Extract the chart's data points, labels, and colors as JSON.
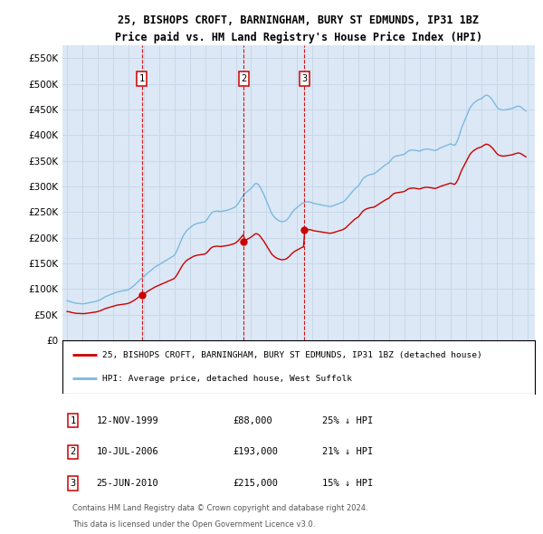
{
  "title": "25, BISHOPS CROFT, BARNINGHAM, BURY ST EDMUNDS, IP31 1BZ",
  "subtitle": "Price paid vs. HM Land Registry's House Price Index (HPI)",
  "ylim": [
    0,
    575000
  ],
  "yticks": [
    0,
    50000,
    100000,
    150000,
    200000,
    250000,
    300000,
    350000,
    400000,
    450000,
    500000,
    550000
  ],
  "xlim_start": 1994.7,
  "xlim_end": 2025.5,
  "hpi_color": "#7cb9e0",
  "sale_color": "#cc0000",
  "grid_color": "#c8d8e8",
  "bg_color": "#dce8f5",
  "legend_line1": "25, BISHOPS CROFT, BARNINGHAM, BURY ST EDMUNDS, IP31 1BZ (detached house)",
  "legend_line2": "HPI: Average price, detached house, West Suffolk",
  "sale_transactions": [
    {
      "num": 1,
      "date": "12-NOV-1999",
      "price": 88000,
      "pct": "25%",
      "year": 1999.87
    },
    {
      "num": 2,
      "date": "10-JUL-2006",
      "price": 193000,
      "pct": "21%",
      "year": 2006.53
    },
    {
      "num": 3,
      "date": "25-JUN-2010",
      "price": 215000,
      "pct": "15%",
      "year": 2010.48
    }
  ],
  "footer_line1": "Contains HM Land Registry data © Crown copyright and database right 2024.",
  "footer_line2": "This data is licensed under the Open Government Licence v3.0.",
  "hpi_data": [
    [
      1995.0,
      77000
    ],
    [
      1995.083,
      76500
    ],
    [
      1995.167,
      76000
    ],
    [
      1995.25,
      75000
    ],
    [
      1995.333,
      74000
    ],
    [
      1995.417,
      73500
    ],
    [
      1995.5,
      72800
    ],
    [
      1995.583,
      72200
    ],
    [
      1995.667,
      72000
    ],
    [
      1995.75,
      71800
    ],
    [
      1995.833,
      71500
    ],
    [
      1995.917,
      71200
    ],
    [
      1996.0,
      71000
    ],
    [
      1996.083,
      71200
    ],
    [
      1996.167,
      71500
    ],
    [
      1996.25,
      72000
    ],
    [
      1996.333,
      72500
    ],
    [
      1996.417,
      73000
    ],
    [
      1996.5,
      73500
    ],
    [
      1996.583,
      74000
    ],
    [
      1996.667,
      74500
    ],
    [
      1996.75,
      75000
    ],
    [
      1996.833,
      75500
    ],
    [
      1996.917,
      76000
    ],
    [
      1997.0,
      77000
    ],
    [
      1997.083,
      78000
    ],
    [
      1997.167,
      79000
    ],
    [
      1997.25,
      80500
    ],
    [
      1997.333,
      82000
    ],
    [
      1997.417,
      83500
    ],
    [
      1997.5,
      85000
    ],
    [
      1997.583,
      86000
    ],
    [
      1997.667,
      87000
    ],
    [
      1997.75,
      88000
    ],
    [
      1997.833,
      89000
    ],
    [
      1997.917,
      90000
    ],
    [
      1998.0,
      91000
    ],
    [
      1998.083,
      92000
    ],
    [
      1998.167,
      93000
    ],
    [
      1998.25,
      94000
    ],
    [
      1998.333,
      94500
    ],
    [
      1998.417,
      95000
    ],
    [
      1998.5,
      95500
    ],
    [
      1998.583,
      96000
    ],
    [
      1998.667,
      96500
    ],
    [
      1998.75,
      97000
    ],
    [
      1998.833,
      97500
    ],
    [
      1998.917,
      98000
    ],
    [
      1999.0,
      99000
    ],
    [
      1999.083,
      100500
    ],
    [
      1999.167,
      102000
    ],
    [
      1999.25,
      104000
    ],
    [
      1999.333,
      106000
    ],
    [
      1999.417,
      108000
    ],
    [
      1999.5,
      110500
    ],
    [
      1999.583,
      113000
    ],
    [
      1999.667,
      115500
    ],
    [
      1999.75,
      118000
    ],
    [
      1999.833,
      120000
    ],
    [
      1999.917,
      122000
    ],
    [
      2000.0,
      124000
    ],
    [
      2000.083,
      126000
    ],
    [
      2000.167,
      128500
    ],
    [
      2000.25,
      131000
    ],
    [
      2000.333,
      133000
    ],
    [
      2000.417,
      135000
    ],
    [
      2000.5,
      137000
    ],
    [
      2000.583,
      139000
    ],
    [
      2000.667,
      141000
    ],
    [
      2000.75,
      143000
    ],
    [
      2000.833,
      144500
    ],
    [
      2000.917,
      146000
    ],
    [
      2001.0,
      147500
    ],
    [
      2001.083,
      149000
    ],
    [
      2001.167,
      150500
    ],
    [
      2001.25,
      152000
    ],
    [
      2001.333,
      153500
    ],
    [
      2001.417,
      155000
    ],
    [
      2001.5,
      156500
    ],
    [
      2001.583,
      158000
    ],
    [
      2001.667,
      159500
    ],
    [
      2001.75,
      161000
    ],
    [
      2001.833,
      162500
    ],
    [
      2001.917,
      164000
    ],
    [
      2002.0,
      166000
    ],
    [
      2002.083,
      170000
    ],
    [
      2002.167,
      175000
    ],
    [
      2002.25,
      181000
    ],
    [
      2002.333,
      187000
    ],
    [
      2002.417,
      193000
    ],
    [
      2002.5,
      199000
    ],
    [
      2002.583,
      204000
    ],
    [
      2002.667,
      208000
    ],
    [
      2002.75,
      212000
    ],
    [
      2002.833,
      215000
    ],
    [
      2002.917,
      217000
    ],
    [
      2003.0,
      219000
    ],
    [
      2003.083,
      221000
    ],
    [
      2003.167,
      223000
    ],
    [
      2003.25,
      225000
    ],
    [
      2003.333,
      226000
    ],
    [
      2003.417,
      227000
    ],
    [
      2003.5,
      228000
    ],
    [
      2003.583,
      228500
    ],
    [
      2003.667,
      229000
    ],
    [
      2003.75,
      229500
    ],
    [
      2003.833,
      230000
    ],
    [
      2003.917,
      230500
    ],
    [
      2004.0,
      231000
    ],
    [
      2004.083,
      234000
    ],
    [
      2004.167,
      237000
    ],
    [
      2004.25,
      241000
    ],
    [
      2004.333,
      245000
    ],
    [
      2004.417,
      248000
    ],
    [
      2004.5,
      250000
    ],
    [
      2004.583,
      251000
    ],
    [
      2004.667,
      251500
    ],
    [
      2004.75,
      252000
    ],
    [
      2004.833,
      252000
    ],
    [
      2004.917,
      251500
    ],
    [
      2005.0,
      251000
    ],
    [
      2005.083,
      251500
    ],
    [
      2005.167,
      252000
    ],
    [
      2005.25,
      252500
    ],
    [
      2005.333,
      253000
    ],
    [
      2005.417,
      253500
    ],
    [
      2005.5,
      254000
    ],
    [
      2005.583,
      255000
    ],
    [
      2005.667,
      256000
    ],
    [
      2005.75,
      257000
    ],
    [
      2005.833,
      258000
    ],
    [
      2005.917,
      259000
    ],
    [
      2006.0,
      261000
    ],
    [
      2006.083,
      264000
    ],
    [
      2006.167,
      267000
    ],
    [
      2006.25,
      271000
    ],
    [
      2006.333,
      275000
    ],
    [
      2006.417,
      279000
    ],
    [
      2006.5,
      283000
    ],
    [
      2006.583,
      286000
    ],
    [
      2006.667,
      288000
    ],
    [
      2006.75,
      290000
    ],
    [
      2006.833,
      292000
    ],
    [
      2006.917,
      294000
    ],
    [
      2007.0,
      296000
    ],
    [
      2007.083,
      299000
    ],
    [
      2007.167,
      302000
    ],
    [
      2007.25,
      305000
    ],
    [
      2007.333,
      306000
    ],
    [
      2007.417,
      305000
    ],
    [
      2007.5,
      303000
    ],
    [
      2007.583,
      299000
    ],
    [
      2007.667,
      294000
    ],
    [
      2007.75,
      289000
    ],
    [
      2007.833,
      284000
    ],
    [
      2007.917,
      278000
    ],
    [
      2008.0,
      272000
    ],
    [
      2008.083,
      266000
    ],
    [
      2008.167,
      260000
    ],
    [
      2008.25,
      254000
    ],
    [
      2008.333,
      248000
    ],
    [
      2008.417,
      244000
    ],
    [
      2008.5,
      241000
    ],
    [
      2008.583,
      238000
    ],
    [
      2008.667,
      236000
    ],
    [
      2008.75,
      234000
    ],
    [
      2008.833,
      233000
    ],
    [
      2008.917,
      232000
    ],
    [
      2009.0,
      231000
    ],
    [
      2009.083,
      231500
    ],
    [
      2009.167,
      232000
    ],
    [
      2009.25,
      233000
    ],
    [
      2009.333,
      235000
    ],
    [
      2009.417,
      238000
    ],
    [
      2009.5,
      241000
    ],
    [
      2009.583,
      245000
    ],
    [
      2009.667,
      249000
    ],
    [
      2009.75,
      252000
    ],
    [
      2009.833,
      255000
    ],
    [
      2009.917,
      257000
    ],
    [
      2010.0,
      259000
    ],
    [
      2010.083,
      261000
    ],
    [
      2010.167,
      263000
    ],
    [
      2010.25,
      265000
    ],
    [
      2010.333,
      267000
    ],
    [
      2010.417,
      268000
    ],
    [
      2010.5,
      269000
    ],
    [
      2010.583,
      269500
    ],
    [
      2010.667,
      270000
    ],
    [
      2010.75,
      270000
    ],
    [
      2010.833,
      269500
    ],
    [
      2010.917,
      269000
    ],
    [
      2011.0,
      268000
    ],
    [
      2011.083,
      267000
    ],
    [
      2011.167,
      266500
    ],
    [
      2011.25,
      266000
    ],
    [
      2011.333,
      265500
    ],
    [
      2011.417,
      265000
    ],
    [
      2011.5,
      264500
    ],
    [
      2011.583,
      264000
    ],
    [
      2011.667,
      263500
    ],
    [
      2011.75,
      263000
    ],
    [
      2011.833,
      262500
    ],
    [
      2011.917,
      262000
    ],
    [
      2012.0,
      261500
    ],
    [
      2012.083,
      261000
    ],
    [
      2012.167,
      261000
    ],
    [
      2012.25,
      261500
    ],
    [
      2012.333,
      262000
    ],
    [
      2012.417,
      263000
    ],
    [
      2012.5,
      264000
    ],
    [
      2012.583,
      265000
    ],
    [
      2012.667,
      266000
    ],
    [
      2012.75,
      267000
    ],
    [
      2012.833,
      268000
    ],
    [
      2012.917,
      269000
    ],
    [
      2013.0,
      270000
    ],
    [
      2013.083,
      272000
    ],
    [
      2013.167,
      274000
    ],
    [
      2013.25,
      277000
    ],
    [
      2013.333,
      280000
    ],
    [
      2013.417,
      283000
    ],
    [
      2013.5,
      286000
    ],
    [
      2013.583,
      289000
    ],
    [
      2013.667,
      292000
    ],
    [
      2013.75,
      295000
    ],
    [
      2013.833,
      297000
    ],
    [
      2013.917,
      299000
    ],
    [
      2014.0,
      301000
    ],
    [
      2014.083,
      305000
    ],
    [
      2014.167,
      309000
    ],
    [
      2014.25,
      313000
    ],
    [
      2014.333,
      316000
    ],
    [
      2014.417,
      318000
    ],
    [
      2014.5,
      320000
    ],
    [
      2014.583,
      321000
    ],
    [
      2014.667,
      322000
    ],
    [
      2014.75,
      323000
    ],
    [
      2014.833,
      323500
    ],
    [
      2014.917,
      324000
    ],
    [
      2015.0,
      324500
    ],
    [
      2015.083,
      326000
    ],
    [
      2015.167,
      328000
    ],
    [
      2015.25,
      330000
    ],
    [
      2015.333,
      332000
    ],
    [
      2015.417,
      334000
    ],
    [
      2015.5,
      336000
    ],
    [
      2015.583,
      338000
    ],
    [
      2015.667,
      340000
    ],
    [
      2015.75,
      342000
    ],
    [
      2015.833,
      343500
    ],
    [
      2015.917,
      345000
    ],
    [
      2016.0,
      347000
    ],
    [
      2016.083,
      350000
    ],
    [
      2016.167,
      353000
    ],
    [
      2016.25,
      356000
    ],
    [
      2016.333,
      358000
    ],
    [
      2016.417,
      359000
    ],
    [
      2016.5,
      359500
    ],
    [
      2016.583,
      360000
    ],
    [
      2016.667,
      360500
    ],
    [
      2016.75,
      361000
    ],
    [
      2016.833,
      361500
    ],
    [
      2016.917,
      362000
    ],
    [
      2017.0,
      363000
    ],
    [
      2017.083,
      365000
    ],
    [
      2017.167,
      367000
    ],
    [
      2017.25,
      369000
    ],
    [
      2017.333,
      370000
    ],
    [
      2017.417,
      370500
    ],
    [
      2017.5,
      371000
    ],
    [
      2017.583,
      371000
    ],
    [
      2017.667,
      370500
    ],
    [
      2017.75,
      370000
    ],
    [
      2017.833,
      369500
    ],
    [
      2017.917,
      369000
    ],
    [
      2018.0,
      369000
    ],
    [
      2018.083,
      370000
    ],
    [
      2018.167,
      371000
    ],
    [
      2018.25,
      372000
    ],
    [
      2018.333,
      372500
    ],
    [
      2018.417,
      373000
    ],
    [
      2018.5,
      373000
    ],
    [
      2018.583,
      372500
    ],
    [
      2018.667,
      372000
    ],
    [
      2018.75,
      371500
    ],
    [
      2018.833,
      371000
    ],
    [
      2018.917,
      370500
    ],
    [
      2019.0,
      370000
    ],
    [
      2019.083,
      371000
    ],
    [
      2019.167,
      372000
    ],
    [
      2019.25,
      373500
    ],
    [
      2019.333,
      375000
    ],
    [
      2019.417,
      376000
    ],
    [
      2019.5,
      377000
    ],
    [
      2019.583,
      378000
    ],
    [
      2019.667,
      379000
    ],
    [
      2019.75,
      380000
    ],
    [
      2019.833,
      381000
    ],
    [
      2019.917,
      382000
    ],
    [
      2020.0,
      383000
    ],
    [
      2020.083,
      382000
    ],
    [
      2020.167,
      381000
    ],
    [
      2020.25,
      380000
    ],
    [
      2020.333,
      382000
    ],
    [
      2020.417,
      387000
    ],
    [
      2020.5,
      393000
    ],
    [
      2020.583,
      401000
    ],
    [
      2020.667,
      409000
    ],
    [
      2020.75,
      416000
    ],
    [
      2020.833,
      422000
    ],
    [
      2020.917,
      428000
    ],
    [
      2021.0,
      434000
    ],
    [
      2021.083,
      440000
    ],
    [
      2021.167,
      446000
    ],
    [
      2021.25,
      452000
    ],
    [
      2021.333,
      456000
    ],
    [
      2021.417,
      459000
    ],
    [
      2021.5,
      462000
    ],
    [
      2021.583,
      464000
    ],
    [
      2021.667,
      466000
    ],
    [
      2021.75,
      468000
    ],
    [
      2021.833,
      469000
    ],
    [
      2021.917,
      470000
    ],
    [
      2022.0,
      471000
    ],
    [
      2022.083,
      473000
    ],
    [
      2022.167,
      475000
    ],
    [
      2022.25,
      477000
    ],
    [
      2022.333,
      478000
    ],
    [
      2022.417,
      477500
    ],
    [
      2022.5,
      476000
    ],
    [
      2022.583,
      474000
    ],
    [
      2022.667,
      471000
    ],
    [
      2022.75,
      468000
    ],
    [
      2022.833,
      464000
    ],
    [
      2022.917,
      460000
    ],
    [
      2023.0,
      456000
    ],
    [
      2023.083,
      453000
    ],
    [
      2023.167,
      451000
    ],
    [
      2023.25,
      450000
    ],
    [
      2023.333,
      449500
    ],
    [
      2023.417,
      449000
    ],
    [
      2023.5,
      449000
    ],
    [
      2023.583,
      449500
    ],
    [
      2023.667,
      450000
    ],
    [
      2023.75,
      450500
    ],
    [
      2023.833,
      451000
    ],
    [
      2023.917,
      451500
    ],
    [
      2024.0,
      452000
    ],
    [
      2024.083,
      453000
    ],
    [
      2024.167,
      454000
    ],
    [
      2024.25,
      455000
    ],
    [
      2024.333,
      456000
    ],
    [
      2024.417,
      456500
    ],
    [
      2024.5,
      456000
    ],
    [
      2024.583,
      455000
    ],
    [
      2024.667,
      453000
    ],
    [
      2024.75,
      451000
    ],
    [
      2024.833,
      449000
    ],
    [
      2024.917,
      447000
    ]
  ]
}
